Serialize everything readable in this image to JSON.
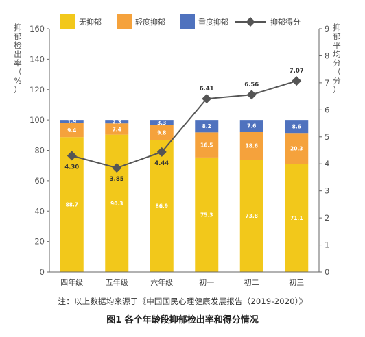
{
  "chart_data": {
    "type": "bar",
    "stacked": true,
    "categories": [
      "四年级",
      "五年级",
      "六年级",
      "初一",
      "初二",
      "初三"
    ],
    "series": [
      {
        "name": "无抑郁",
        "values": [
          88.7,
          90.3,
          86.9,
          75.3,
          73.8,
          71.1
        ],
        "color": "#F2C81B",
        "label_color": "#ffffff"
      },
      {
        "name": "轻度抑郁",
        "values": [
          9.4,
          7.4,
          9.8,
          16.5,
          18.6,
          20.3
        ],
        "color": "#F5A23C",
        "label_color": "#ffffff"
      },
      {
        "name": "重度抑郁",
        "values": [
          1.9,
          2.3,
          3.3,
          8.2,
          7.6,
          8.6
        ],
        "color": "#4F72BE",
        "label_color": "#ffffff"
      }
    ],
    "line_series": {
      "name": "抑郁得分",
      "values": [
        4.3,
        3.85,
        4.44,
        6.41,
        6.56,
        7.07
      ],
      "labels": [
        "4.30",
        "3.85",
        "4.44",
        "6.41",
        "6.56",
        "7.07"
      ],
      "color": "#555555"
    },
    "ylabel": "抑郁检出率（%）",
    "ylabel_right": "抑郁平均分（分）",
    "ylim": [
      0,
      160
    ],
    "y_ticks": [
      0,
      20,
      40,
      60,
      80,
      100,
      120,
      140,
      160
    ],
    "ylim_right": [
      0,
      9
    ],
    "y_ticks_right": [
      0,
      1,
      2,
      3,
      4,
      5,
      6,
      7,
      8,
      9
    ],
    "legend_position": "top",
    "grid": false
  },
  "note": "注：以上数据均来源于《中国国民心理健康发展报告（2019-2020）》",
  "caption": "图1 各个年龄段抑郁检出率和得分情况"
}
